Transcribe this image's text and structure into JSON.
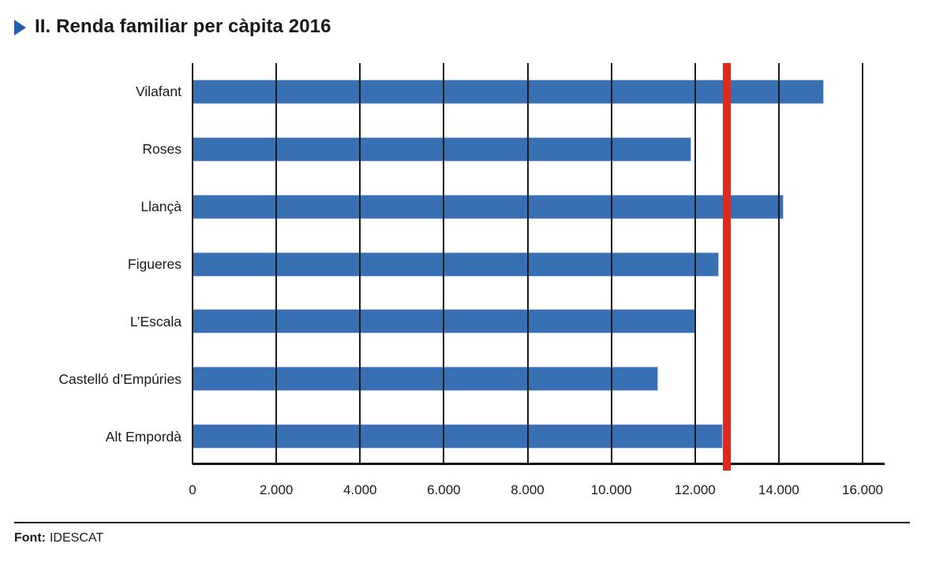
{
  "header": {
    "title": "II. Renda familiar per càpita 2016",
    "marker_color": "#1f5fae"
  },
  "chart_data": {
    "type": "bar",
    "orientation": "horizontal",
    "title": "II. Renda familiar per càpita 2016",
    "categories": [
      "Vilafant",
      "Roses",
      "Llançà",
      "Figueres",
      "L’Escala",
      "Castelló d’Empúries",
      "Alt Empordà"
    ],
    "values": [
      15050,
      11900,
      14100,
      12550,
      12000,
      11100,
      12650
    ],
    "xlim": [
      0,
      16000
    ],
    "xticks": [
      0,
      2000,
      4000,
      6000,
      8000,
      10000,
      12000,
      14000,
      16000
    ],
    "xtick_labels": [
      "0",
      "2.000",
      "4.000",
      "6.000",
      "8.000",
      "10.000",
      "12.000",
      "14.000",
      "16.000"
    ],
    "grid": true,
    "legend": false,
    "bar_color": "#3970b3",
    "reference_line": {
      "value": 12750,
      "color": "#dd2a1f"
    }
  },
  "footer": {
    "prefix": "Font:",
    "source": "IDESCAT"
  }
}
